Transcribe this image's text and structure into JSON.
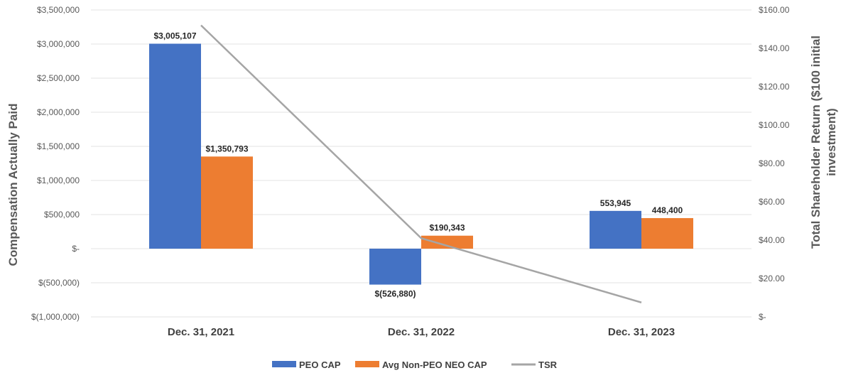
{
  "chart_data": {
    "type": "bar",
    "categories": [
      "Dec. 31, 2021",
      "Dec. 31, 2022",
      "Dec. 31, 2023"
    ],
    "series": [
      {
        "name": "PEO CAP",
        "type": "bar",
        "axis": "left",
        "color": "#4472c4",
        "values": [
          3005107,
          -526880,
          553945
        ],
        "labels": [
          "$3,005,107",
          "$(526,880)",
          "553,945"
        ]
      },
      {
        "name": "Avg Non-PEO NEO CAP",
        "type": "bar",
        "axis": "left",
        "color": "#ed7d31",
        "values": [
          1350793,
          190343,
          448400
        ],
        "labels": [
          "$1,350,793",
          "$190,343",
          "448,400"
        ]
      },
      {
        "name": "TSR",
        "type": "line",
        "axis": "right",
        "color": "#a5a5a5",
        "values": [
          152,
          41,
          7.5
        ]
      }
    ],
    "ylabel": "Compensation Actually Paid",
    "ylim": [
      -1000000,
      3500000
    ],
    "y_ticks": [
      "$3,500,000",
      "$3,000,000",
      "$2,500,000",
      "$2,000,000",
      "$1,500,000",
      "$1,000,000",
      "$500,000",
      "$-",
      "$(500,000)",
      "$(1,000,000)"
    ],
    "y_tick_values": [
      3500000,
      3000000,
      2500000,
      2000000,
      1500000,
      1000000,
      500000,
      0,
      -500000,
      -1000000
    ],
    "y2label": "Total Shareholder Return ($100 initial investment)",
    "y2label_lines": [
      "Total Shareholder Return ($100 initial",
      "investment)"
    ],
    "y2lim": [
      0,
      160
    ],
    "y2_ticks": [
      "$160.00",
      "$140.00",
      "$120.00",
      "$100.00",
      "$80.00",
      "$60.00",
      "$40.00",
      "$20.00",
      "$-"
    ],
    "y2_tick_values": [
      160,
      140,
      120,
      100,
      80,
      60,
      40,
      20,
      0
    ],
    "grid": true,
    "legend": "bottom",
    "legend_labels": [
      "PEO CAP",
      "Avg Non-PEO NEO CAP",
      "TSR"
    ]
  }
}
